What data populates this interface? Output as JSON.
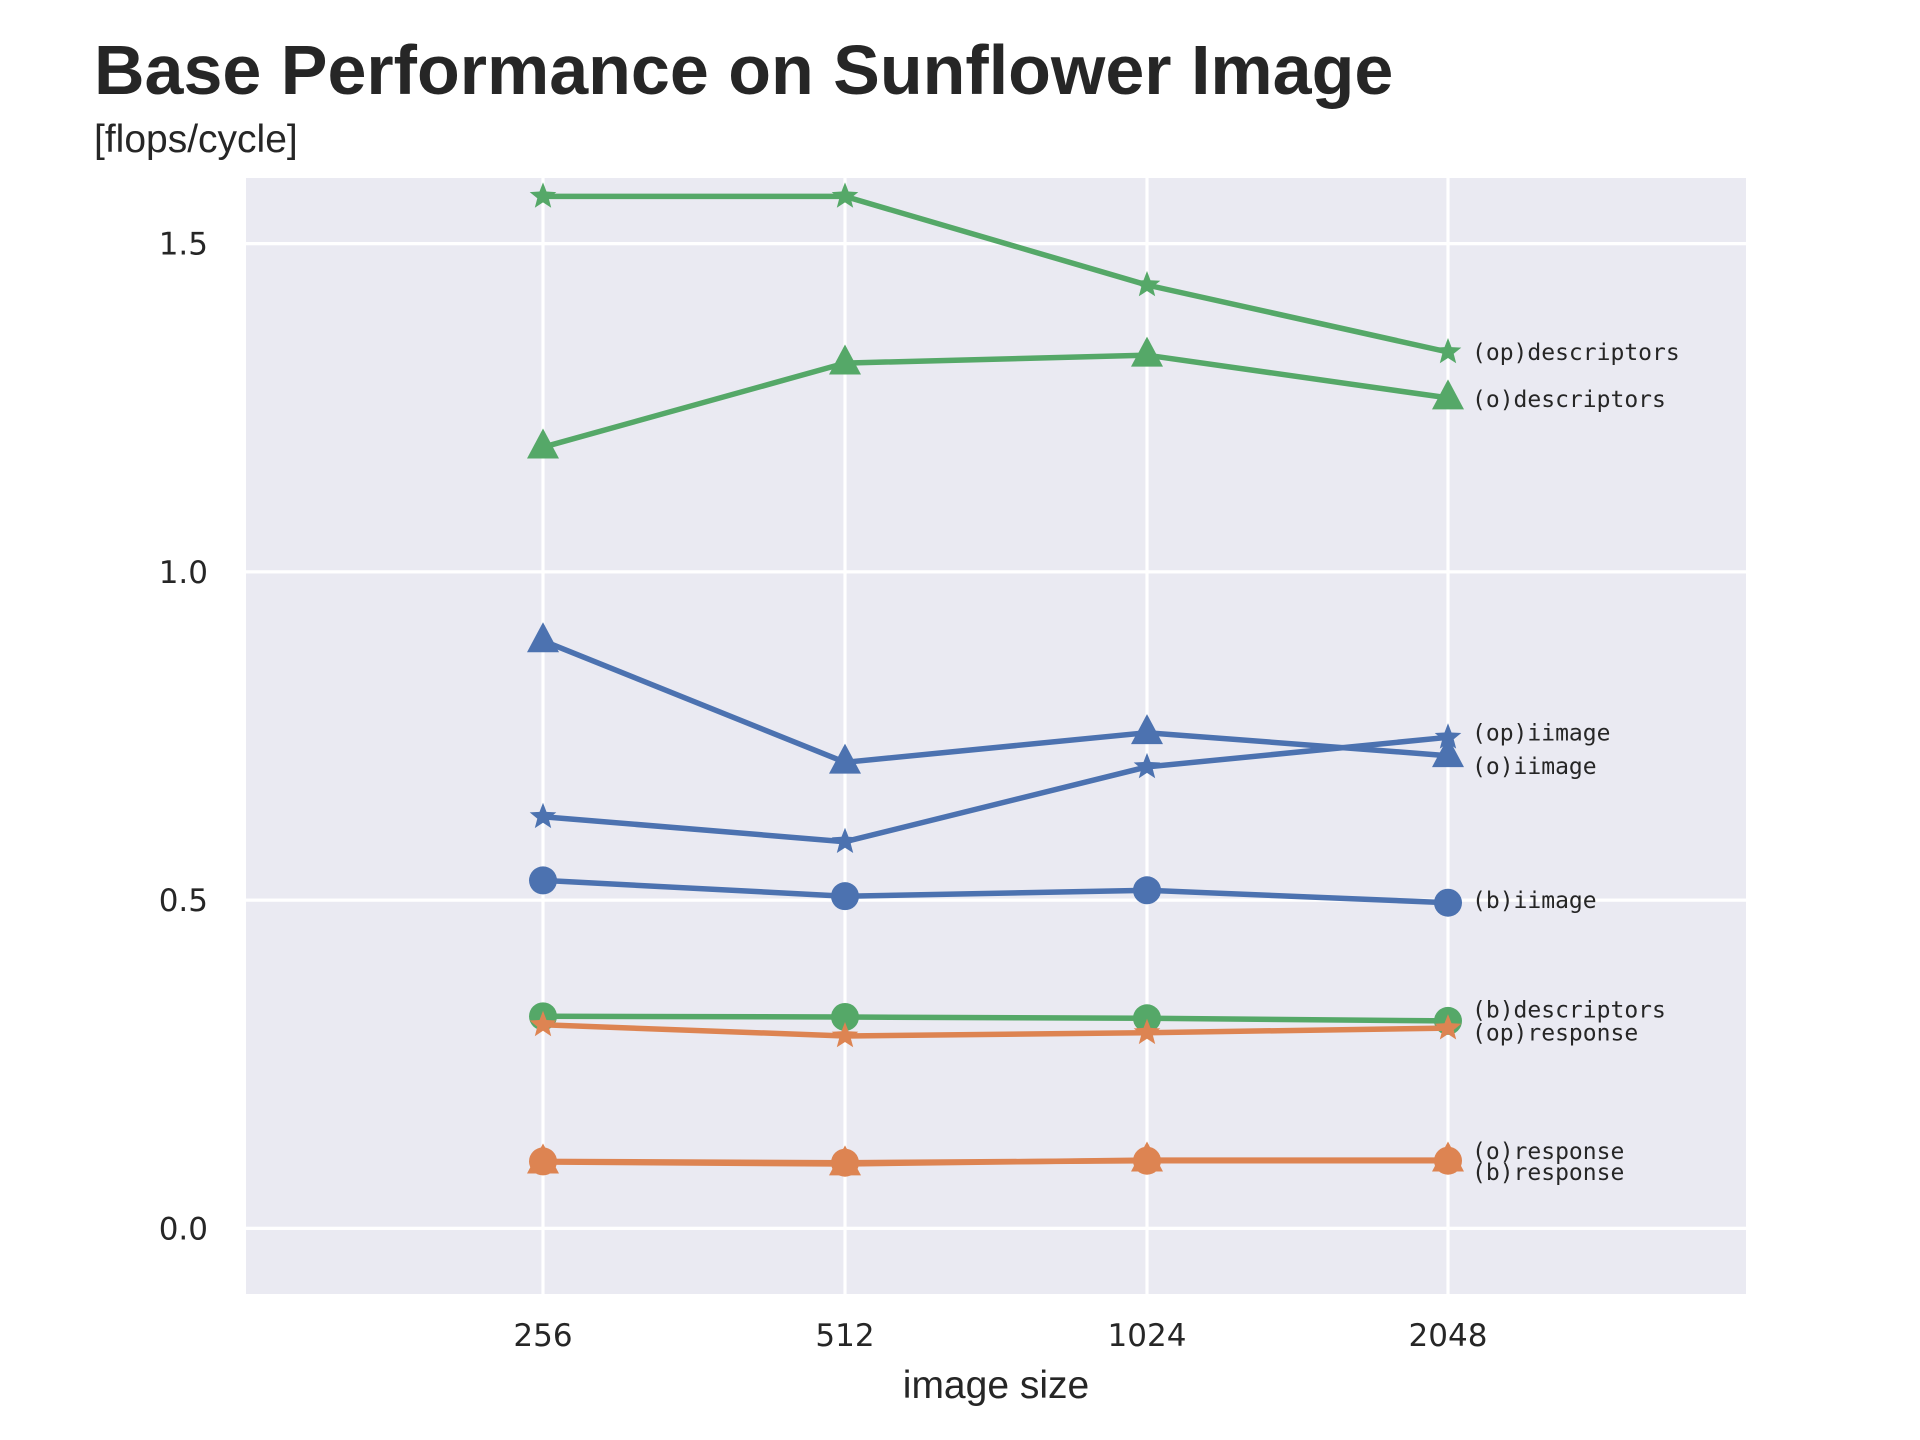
{
  "chart_data": {
    "type": "line",
    "title": "Base Performance on Sunflower Image",
    "subtitle": "[flops/cycle]",
    "xlabel": "image size",
    "ylabel": "",
    "categories": [
      "256",
      "512",
      "1024",
      "2048"
    ],
    "ylim": [
      -0.1,
      1.6
    ],
    "yticks": [
      0.0,
      0.5,
      1.0,
      1.5
    ],
    "ytick_labels": [
      "0.0",
      "0.5",
      "1.0",
      "1.5"
    ],
    "grid": true,
    "background": "#eaeaf2",
    "series": [
      {
        "name": "(op)descriptors",
        "color": "#55a868",
        "marker": "star",
        "values": [
          1.572,
          1.572,
          1.437,
          1.335
        ],
        "label_y": 1.335
      },
      {
        "name": "(o)descriptors",
        "color": "#55a868",
        "marker": "triangle",
        "values": [
          1.19,
          1.318,
          1.33,
          1.265
        ],
        "label_y": 1.263
      },
      {
        "name": "(op)iimage",
        "color": "#4c72b0",
        "marker": "star",
        "values": [
          0.627,
          0.589,
          0.703,
          0.748
        ],
        "label_y": 0.755
      },
      {
        "name": "(o)iimage",
        "color": "#4c72b0",
        "marker": "triangle",
        "values": [
          0.895,
          0.71,
          0.755,
          0.72
        ],
        "label_y": 0.704
      },
      {
        "name": "(b)iimage",
        "color": "#4c72b0",
        "marker": "circle",
        "values": [
          0.53,
          0.506,
          0.515,
          0.496
        ],
        "label_y": 0.5
      },
      {
        "name": "(b)descriptors",
        "color": "#55a868",
        "marker": "circle",
        "values": [
          0.323,
          0.322,
          0.32,
          0.316
        ],
        "label_y": 0.333
      },
      {
        "name": "(op)response",
        "color": "#dd8452",
        "marker": "star",
        "values": [
          0.31,
          0.293,
          0.298,
          0.305
        ],
        "label_y": 0.298
      },
      {
        "name": "(o)response",
        "color": "#dd8452",
        "marker": "triangle",
        "values": [
          0.101,
          0.098,
          0.104,
          0.104
        ],
        "label_y": 0.118
      },
      {
        "name": "(b)response",
        "color": "#dd8452",
        "marker": "circle",
        "values": [
          0.102,
          0.1,
          0.103,
          0.103
        ],
        "label_y": 0.086
      }
    ]
  }
}
